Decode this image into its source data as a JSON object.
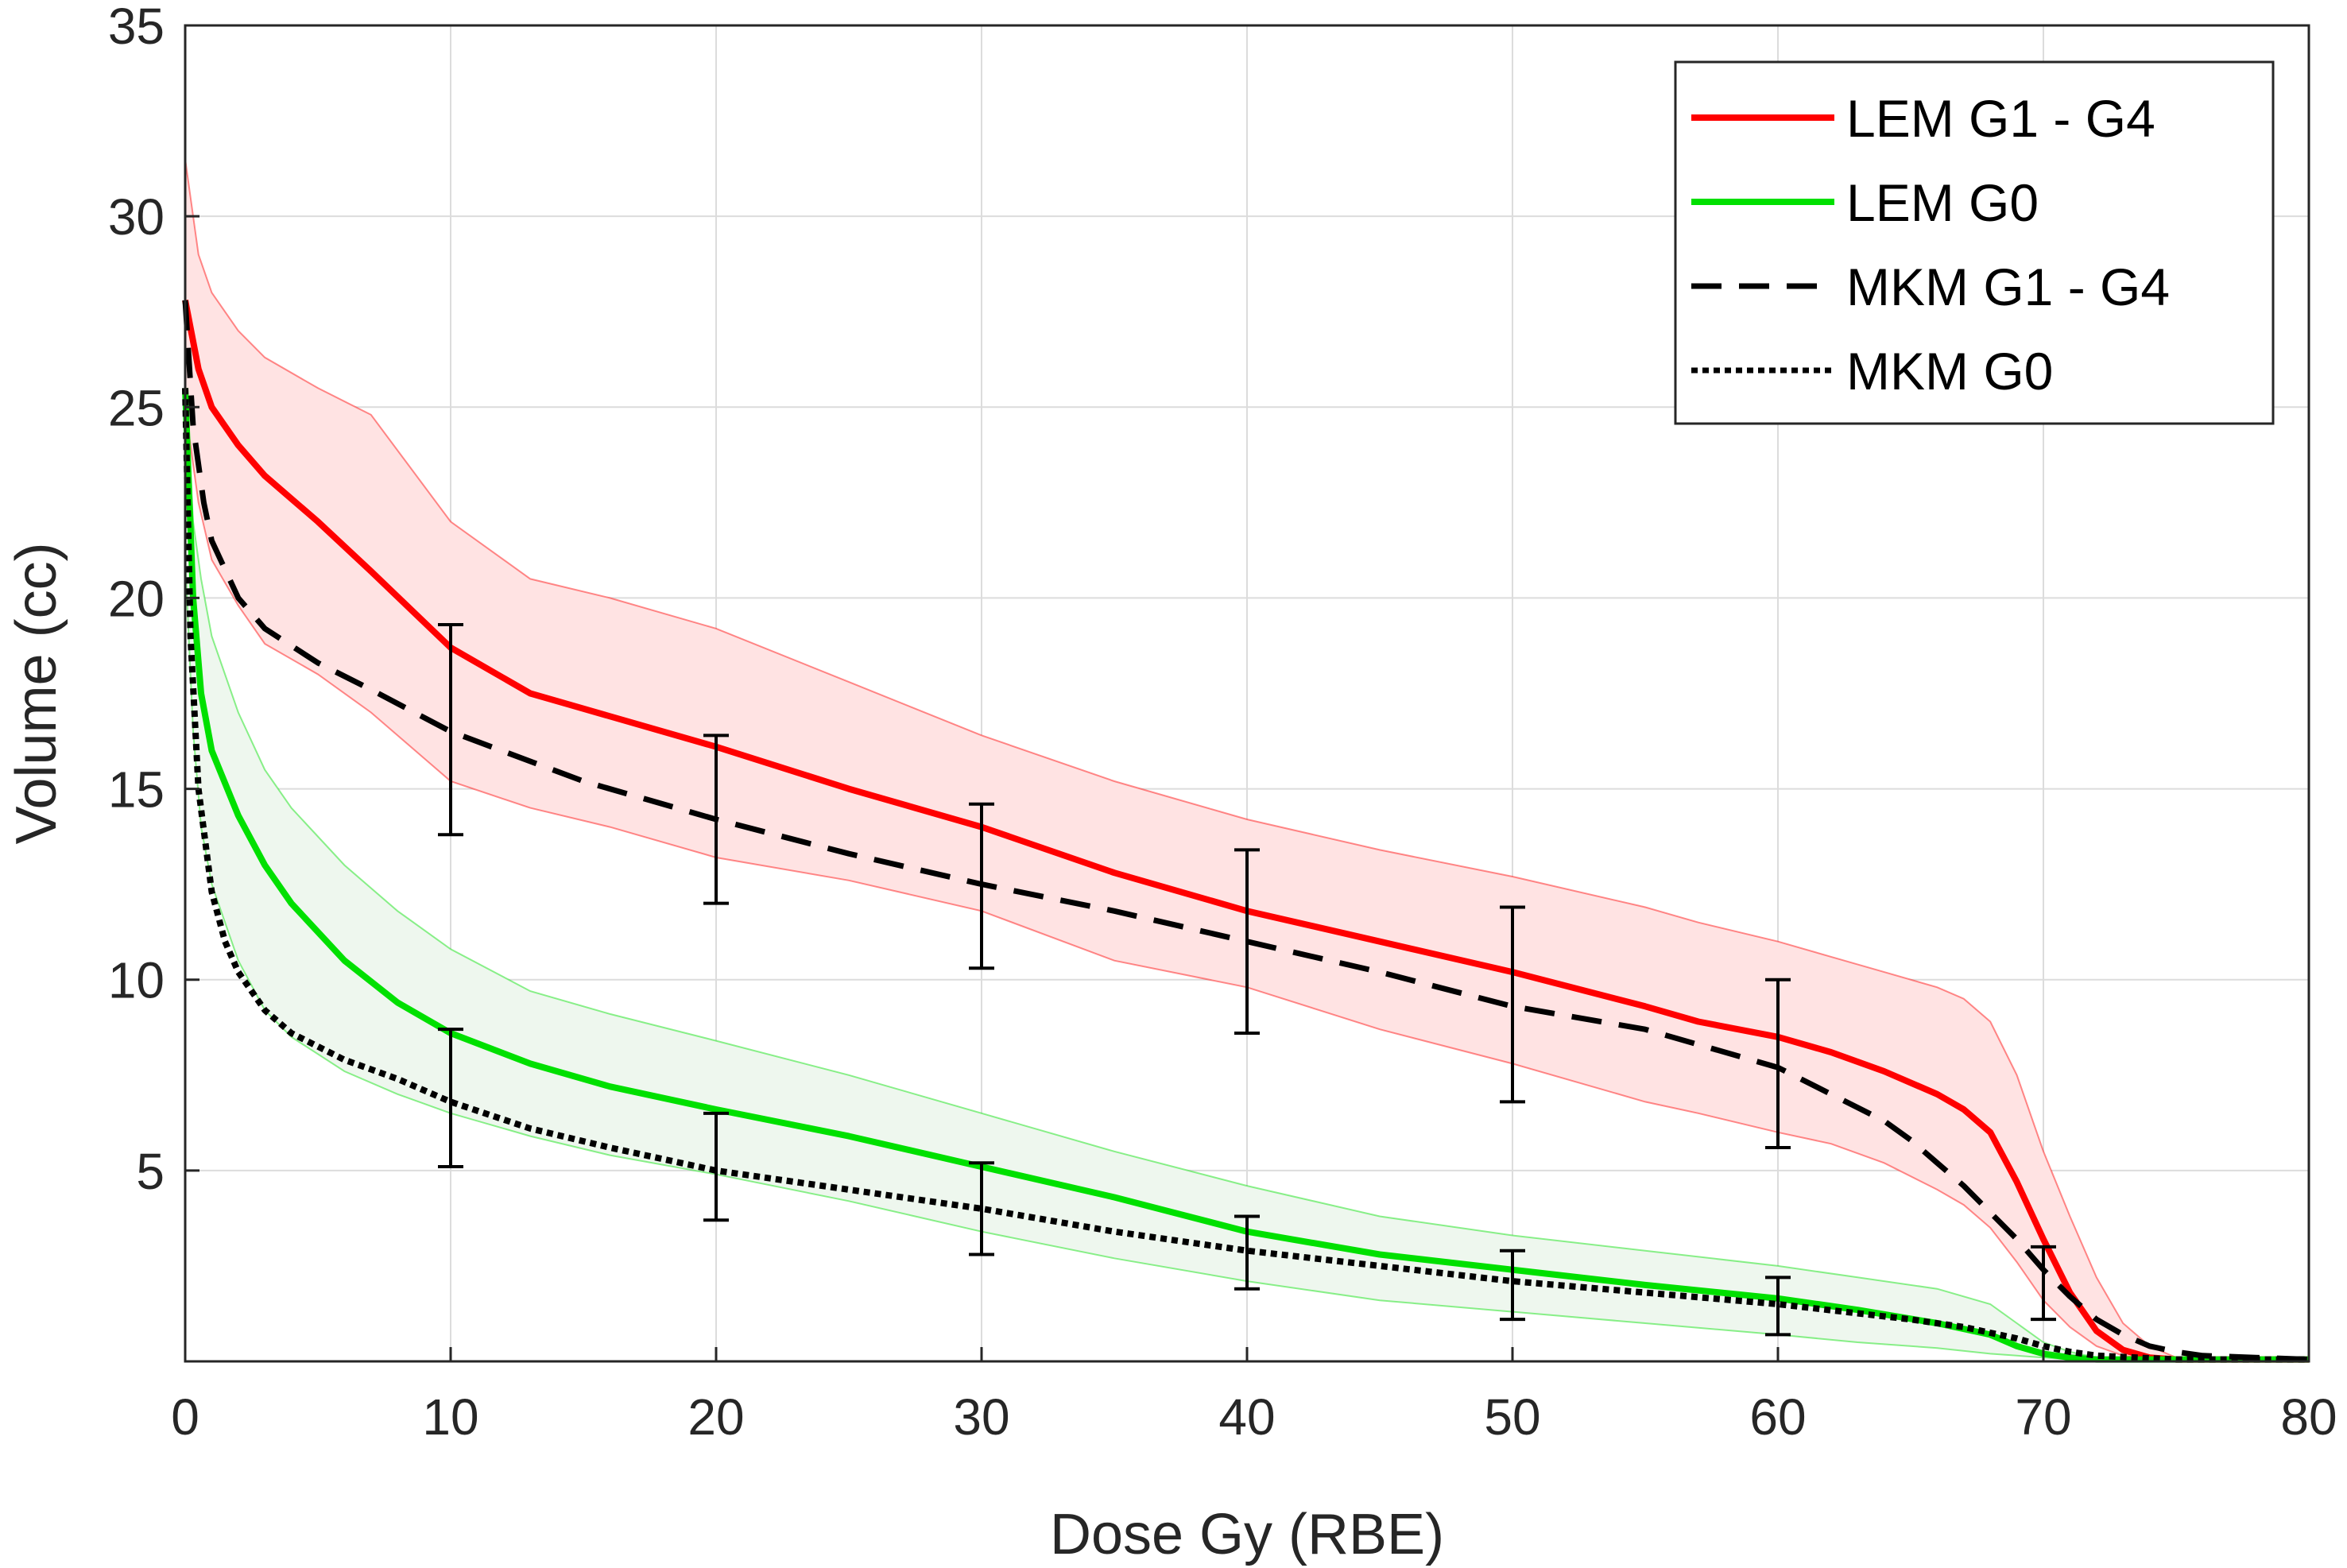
{
  "chart_data": {
    "type": "line",
    "title": "",
    "xlabel": "Dose Gy (RBE)",
    "ylabel": "Volume (cc)",
    "xlim": [
      0,
      80
    ],
    "ylim": [
      0,
      35
    ],
    "xticks": [
      0,
      10,
      20,
      30,
      40,
      50,
      60,
      70,
      80
    ],
    "yticks": [
      5,
      10,
      15,
      20,
      25,
      30,
      35
    ],
    "grid": true,
    "legend_position": "top-right",
    "series": [
      {
        "name": "LEM G1 - G4",
        "style": "solid",
        "color": "#ff0000",
        "x": [
          0,
          0.5,
          1,
          2,
          3,
          5,
          7,
          10,
          13,
          16,
          20,
          25,
          30,
          35,
          40,
          45,
          50,
          55,
          57,
          60,
          62,
          64,
          66,
          67,
          68,
          69,
          70,
          71,
          72,
          73,
          74,
          75,
          80
        ],
        "y": [
          27.8,
          26.0,
          25.0,
          24.0,
          23.2,
          22.0,
          20.7,
          18.7,
          17.5,
          16.9,
          16.1,
          15.0,
          14.0,
          12.8,
          11.8,
          11.0,
          10.2,
          9.3,
          8.9,
          8.5,
          8.1,
          7.6,
          7.0,
          6.6,
          6.0,
          4.7,
          3.2,
          1.8,
          0.8,
          0.3,
          0.1,
          0.05,
          0.05
        ],
        "band_upper": [
          31.5,
          29.0,
          28.0,
          27.0,
          26.3,
          25.5,
          24.8,
          22.0,
          20.5,
          20.0,
          19.2,
          17.8,
          16.4,
          15.2,
          14.2,
          13.4,
          12.7,
          11.9,
          11.5,
          11.0,
          10.6,
          10.2,
          9.8,
          9.5,
          8.9,
          7.5,
          5.5,
          3.8,
          2.2,
          1.0,
          0.4,
          0.1,
          0.05
        ],
        "band_lower": [
          25.0,
          22.5,
          21.0,
          19.8,
          18.8,
          18.0,
          17.0,
          15.2,
          14.5,
          14.0,
          13.2,
          12.6,
          11.8,
          10.5,
          9.8,
          8.7,
          7.8,
          6.8,
          6.5,
          6.0,
          5.7,
          5.2,
          4.5,
          4.1,
          3.5,
          2.6,
          1.6,
          0.9,
          0.4,
          0.15,
          0.05,
          0.05,
          0.05
        ],
        "band_color": "#ffe3e3"
      },
      {
        "name": "LEM G0",
        "style": "solid",
        "color": "#00e000",
        "x": [
          0,
          0.3,
          0.6,
          1,
          2,
          3,
          4,
          6,
          8,
          10,
          13,
          16,
          20,
          25,
          30,
          35,
          40,
          45,
          50,
          55,
          60,
          63,
          66,
          68,
          69,
          70,
          71,
          72,
          75,
          80
        ],
        "y": [
          25.5,
          20.0,
          17.5,
          16.0,
          14.3,
          13.0,
          12.0,
          10.5,
          9.4,
          8.6,
          7.8,
          7.2,
          6.6,
          5.9,
          5.1,
          4.3,
          3.4,
          2.8,
          2.4,
          2.0,
          1.65,
          1.35,
          1.0,
          0.7,
          0.4,
          0.2,
          0.1,
          0.05,
          0.05,
          0.05
        ],
        "band_upper": [
          25.5,
          22.0,
          20.5,
          19.0,
          17.0,
          15.5,
          14.5,
          13.0,
          11.8,
          10.8,
          9.7,
          9.1,
          8.4,
          7.5,
          6.5,
          5.5,
          4.6,
          3.8,
          3.3,
          2.9,
          2.5,
          2.2,
          1.9,
          1.5,
          1.0,
          0.5,
          0.25,
          0.1,
          0.05,
          0.05
        ],
        "band_lower": [
          21.0,
          16.5,
          14.0,
          12.5,
          10.5,
          9.2,
          8.5,
          7.6,
          7.0,
          6.5,
          5.9,
          5.4,
          4.9,
          4.2,
          3.4,
          2.7,
          2.1,
          1.6,
          1.3,
          1.0,
          0.7,
          0.5,
          0.35,
          0.2,
          0.15,
          0.1,
          0.05,
          0.05,
          0.05,
          0.05
        ],
        "band_color": "#eef7ee"
      },
      {
        "name": "MKM G1 - G4",
        "style": "dashed",
        "color": "#000000",
        "x": [
          0,
          0.3,
          0.7,
          1,
          2,
          3,
          5,
          7,
          10,
          15,
          20,
          25,
          30,
          35,
          40,
          45,
          50,
          55,
          57,
          60,
          62,
          64,
          65,
          66,
          67,
          68,
          69,
          70,
          71,
          72,
          73,
          74,
          75,
          76,
          78,
          80
        ],
        "y": [
          27.8,
          24.5,
          22.5,
          21.5,
          20.0,
          19.2,
          18.3,
          17.6,
          16.5,
          15.2,
          14.2,
          13.3,
          12.5,
          11.8,
          11.0,
          10.2,
          9.3,
          8.7,
          8.3,
          7.7,
          7.0,
          6.3,
          5.8,
          5.2,
          4.6,
          3.9,
          3.2,
          2.4,
          1.7,
          1.1,
          0.7,
          0.4,
          0.25,
          0.15,
          0.1,
          0.05
        ]
      },
      {
        "name": "MKM G0",
        "style": "dotted",
        "color": "#000000",
        "x": [
          0,
          0.2,
          0.5,
          1,
          1.5,
          2,
          3,
          4,
          6,
          8,
          10,
          13,
          16,
          20,
          25,
          30,
          35,
          40,
          45,
          50,
          55,
          60,
          65,
          67,
          69,
          70,
          71,
          72,
          75,
          80
        ],
        "y": [
          25.5,
          19.0,
          15.0,
          12.3,
          11.0,
          10.2,
          9.2,
          8.6,
          7.9,
          7.4,
          6.8,
          6.1,
          5.6,
          5.0,
          4.5,
          4.0,
          3.4,
          2.9,
          2.5,
          2.1,
          1.8,
          1.5,
          1.1,
          0.9,
          0.6,
          0.4,
          0.25,
          0.15,
          0.05,
          0.05
        ]
      }
    ],
    "error_bars": [
      {
        "x": 10,
        "low": 13.8,
        "high": 19.3
      },
      {
        "x": 20,
        "low": 12.0,
        "high": 16.4
      },
      {
        "x": 30,
        "low": 10.3,
        "high": 14.6
      },
      {
        "x": 40,
        "low": 8.6,
        "high": 13.4
      },
      {
        "x": 50,
        "low": 6.8,
        "high": 11.9
      },
      {
        "x": 60,
        "low": 5.6,
        "high": 10.0
      },
      {
        "x": 70,
        "low": 1.1,
        "high": 3.0
      },
      {
        "x": 10,
        "low": 5.1,
        "high": 8.7
      },
      {
        "x": 20,
        "low": 3.7,
        "high": 6.5
      },
      {
        "x": 30,
        "low": 2.8,
        "high": 5.2
      },
      {
        "x": 40,
        "low": 1.9,
        "high": 3.8
      },
      {
        "x": 50,
        "low": 1.1,
        "high": 2.9
      },
      {
        "x": 60,
        "low": 0.7,
        "high": 2.2
      }
    ]
  }
}
